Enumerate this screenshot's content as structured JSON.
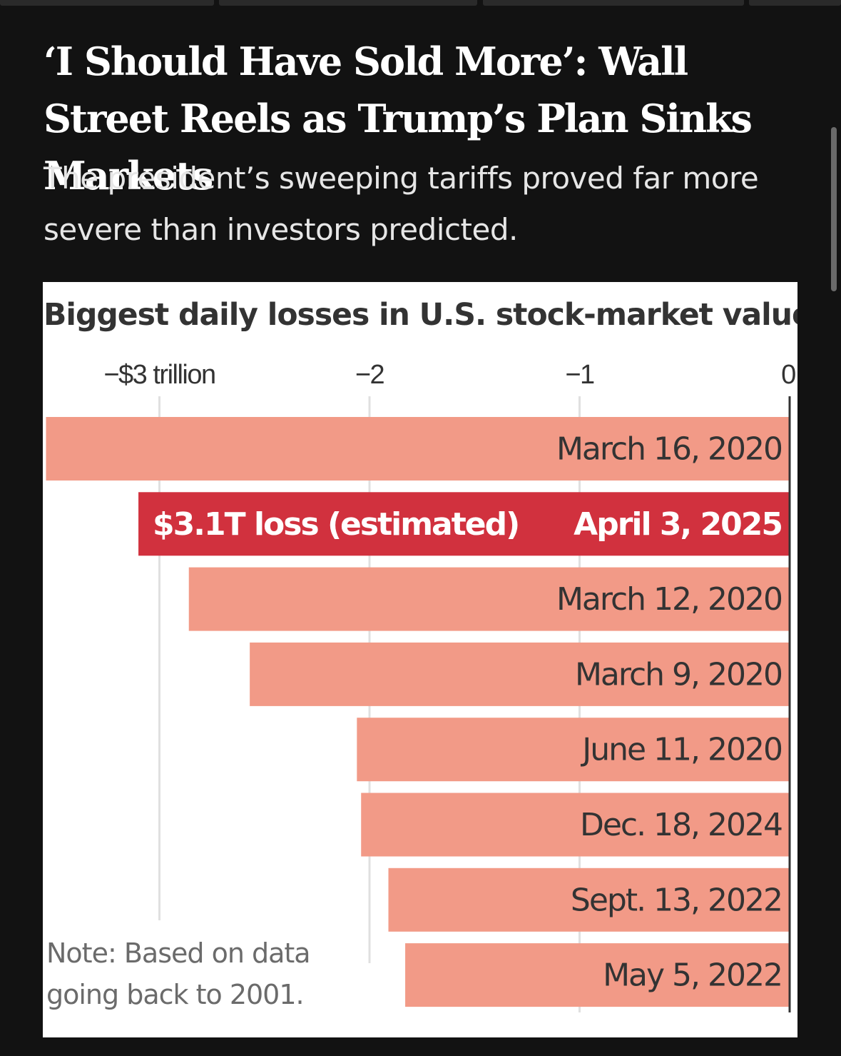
{
  "headline": "‘I Should Have Sold More’: Wall Street Reels as Trump’s Plan Sinks Markets",
  "dek": "The president’s sweeping tariffs proved far more severe than investors predicted.",
  "colors": {
    "page_background": "#121212",
    "bar": "#f29a87",
    "bar_highlight": "#d1313e",
    "bar_text": "#333333",
    "bar_highlight_text": "#ffffff",
    "gridline": "#e0e0e0",
    "axis": "#333333"
  },
  "chart_data": {
    "type": "bar",
    "orientation": "horizontal",
    "title": "Biggest daily losses in U.S. stock-market value",
    "xlim": [
      -3.54,
      0
    ],
    "xticks": [
      {
        "value": -3,
        "label": "−$3 trillion"
      },
      {
        "value": -2,
        "label": "−2"
      },
      {
        "value": -1,
        "label": "−1"
      },
      {
        "value": 0,
        "label": "0"
      }
    ],
    "grid": true,
    "categories": [
      "March 16, 2020",
      "April 3, 2025",
      "March 12, 2020",
      "March 9, 2020",
      "June 11, 2020",
      "Dec. 18, 2024",
      "Sept. 13, 2022",
      "May 5, 2022"
    ],
    "values": [
      -3.54,
      -3.1,
      -2.86,
      -2.57,
      -2.06,
      -2.04,
      -1.91,
      -1.83
    ],
    "highlight_index": 1,
    "highlight_label": "$3.1T loss (estimated)",
    "note": "Note: Based on data going back to 2001."
  }
}
